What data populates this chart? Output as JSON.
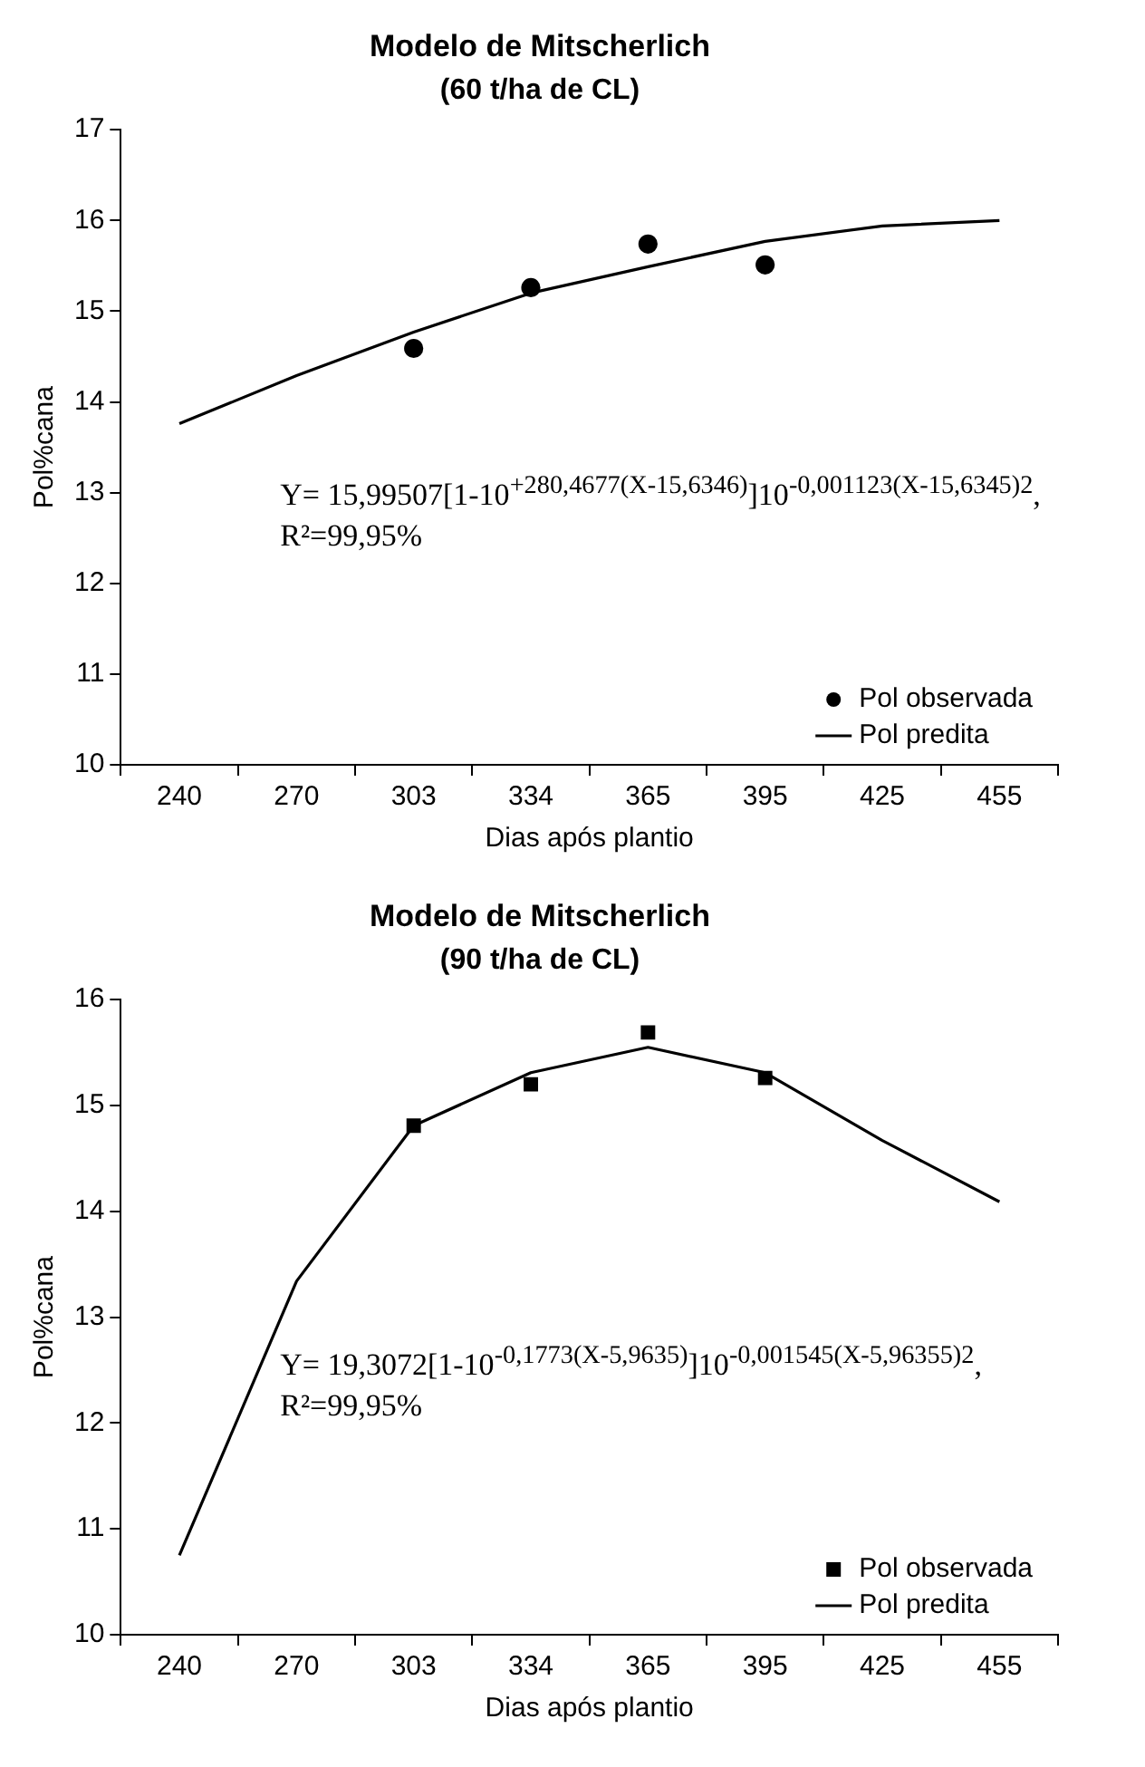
{
  "chart_data": [
    {
      "type": "line",
      "title": "Modelo de Mitscherlich",
      "subtitle": "(60 t/ha de CL)",
      "xlabel": "Dias após plantio",
      "ylabel": "Pol%cana",
      "categories": [
        "240",
        "270",
        "303",
        "334",
        "365",
        "395",
        "425",
        "455"
      ],
      "series": [
        {
          "name": "Pol observada",
          "type": "scatter",
          "marker": "circle",
          "color": "#000000",
          "values": [
            null,
            null,
            14.59,
            15.26,
            15.74,
            15.51,
            null,
            null
          ]
        },
        {
          "name": "Pol predita",
          "type": "line",
          "marker": "none",
          "color": "#000000",
          "values": [
            13.76,
            14.29,
            14.77,
            15.2,
            15.49,
            15.77,
            15.94,
            16.0
          ]
        }
      ],
      "ylim": [
        10,
        17
      ],
      "yticks": [
        10,
        11,
        12,
        13,
        14,
        15,
        16,
        17
      ],
      "grid": false,
      "legend": "bottom right",
      "annotations": [
        "Y= 15,99507[1-10$^{+280,4677(X-15,6346)}$]10$^{-0,001123(X-15,6345)2}$,",
        "R²=99,95%"
      ]
    },
    {
      "type": "line",
      "title": "Modelo de Mitscherlich",
      "subtitle": "(90 t/ha de CL)",
      "xlabel": "Dias após plantio",
      "ylabel": "Pol%cana",
      "categories": [
        "240",
        "270",
        "303",
        "334",
        "365",
        "395",
        "425",
        "455"
      ],
      "series": [
        {
          "name": "Pol observada",
          "type": "scatter",
          "marker": "square",
          "color": "#000000",
          "values": [
            null,
            null,
            14.81,
            15.2,
            15.69,
            15.26,
            null,
            null
          ]
        },
        {
          "name": "Pol predita",
          "type": "line",
          "marker": "none",
          "color": "#000000",
          "values": [
            10.75,
            13.34,
            14.81,
            15.31,
            15.55,
            15.31,
            14.67,
            14.09
          ]
        }
      ],
      "ylim": [
        10,
        16
      ],
      "yticks": [
        10,
        11,
        12,
        13,
        14,
        15,
        16
      ],
      "grid": false,
      "legend": "bottom right",
      "annotations": [
        "Y= 19,3072[1-10$^{-0,1773(X-5,9635)}$]10$^{-0,001545(X-5,96355)2}$,",
        "R²=99,95%"
      ]
    }
  ]
}
